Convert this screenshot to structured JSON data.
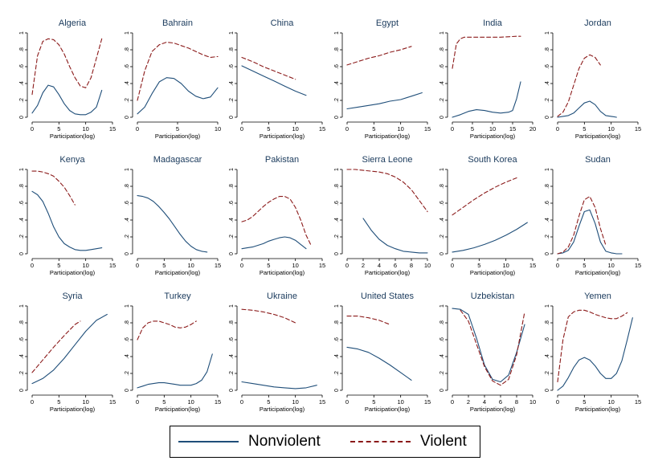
{
  "chart_data": {
    "type": "line",
    "legend": {
      "position": "bottom-center",
      "series": [
        {
          "name": "Nonviolent",
          "color": "#1f4e79",
          "style": "solid"
        },
        {
          "name": "Violent",
          "color": "#8b1a1a",
          "style": "dashed"
        }
      ]
    },
    "ylim": [
      0,
      1
    ],
    "yticks": [
      "0",
      ".2",
      ".4",
      ".6",
      ".8",
      "1"
    ],
    "panels": [
      {
        "title": "Algeria",
        "xlabel": "Participation(log)",
        "xlim": [
          0,
          15
        ],
        "xticks": [
          "0",
          "5",
          "10",
          "15"
        ],
        "nonviolent": {
          "x": [
            0,
            1,
            2,
            3,
            4,
            5,
            6,
            7,
            8,
            9,
            10,
            11,
            12,
            13
          ],
          "y": [
            0.05,
            0.14,
            0.29,
            0.38,
            0.36,
            0.27,
            0.16,
            0.08,
            0.04,
            0.03,
            0.03,
            0.06,
            0.12,
            0.32
          ]
        },
        "violent": {
          "x": [
            0,
            1,
            2,
            3,
            4,
            5,
            6,
            7,
            8,
            9,
            10,
            11,
            12,
            13
          ],
          "y": [
            0.27,
            0.73,
            0.9,
            0.93,
            0.92,
            0.86,
            0.75,
            0.6,
            0.47,
            0.37,
            0.35,
            0.47,
            0.7,
            0.93
          ]
        }
      },
      {
        "title": "Bahrain",
        "xlabel": "Participation(log)",
        "xlim": [
          0,
          11
        ],
        "xticks": [
          "0",
          "5",
          "10"
        ],
        "nonviolent": {
          "x": [
            0,
            1,
            2,
            3,
            4,
            5,
            6,
            7,
            8,
            9,
            10,
            11
          ],
          "y": [
            0.04,
            0.12,
            0.28,
            0.42,
            0.47,
            0.46,
            0.4,
            0.31,
            0.25,
            0.22,
            0.24,
            0.35
          ]
        },
        "violent": {
          "x": [
            0,
            1,
            2,
            3,
            4,
            5,
            6,
            7,
            8,
            9,
            10,
            11
          ],
          "y": [
            0.2,
            0.55,
            0.78,
            0.86,
            0.89,
            0.88,
            0.85,
            0.82,
            0.78,
            0.74,
            0.71,
            0.72
          ]
        }
      },
      {
        "title": "China",
        "xlabel": "Participation(log)",
        "xlim": [
          0,
          15
        ],
        "xticks": [
          "0",
          "5",
          "10",
          "15"
        ],
        "nonviolent": {
          "x": [
            0,
            2,
            4,
            6,
            8,
            10,
            12
          ],
          "y": [
            0.61,
            0.55,
            0.49,
            0.43,
            0.37,
            0.31,
            0.26
          ]
        },
        "violent": {
          "x": [
            0,
            2,
            4,
            6,
            8,
            10
          ],
          "y": [
            0.71,
            0.66,
            0.6,
            0.55,
            0.5,
            0.45
          ]
        }
      },
      {
        "title": "Egypt",
        "xlabel": "Participation(log)",
        "xlim": [
          0,
          15
        ],
        "xticks": [
          "0",
          "5",
          "10",
          "15"
        ],
        "nonviolent": {
          "x": [
            0,
            2,
            4,
            6,
            8,
            10,
            12,
            14
          ],
          "y": [
            0.1,
            0.12,
            0.14,
            0.16,
            0.19,
            0.21,
            0.25,
            0.29
          ]
        },
        "violent": {
          "x": [
            0,
            2,
            4,
            6,
            8,
            10,
            12
          ],
          "y": [
            0.62,
            0.66,
            0.7,
            0.73,
            0.77,
            0.8,
            0.84
          ]
        }
      },
      {
        "title": "India",
        "xlabel": "Participation(log)",
        "xlim": [
          0,
          20
        ],
        "xticks": [
          "0",
          "5",
          "10",
          "15",
          "20"
        ],
        "nonviolent": {
          "x": [
            0,
            2,
            4,
            6,
            8,
            10,
            12,
            14,
            15,
            16,
            17
          ],
          "y": [
            0.0,
            0.03,
            0.07,
            0.09,
            0.08,
            0.06,
            0.05,
            0.06,
            0.08,
            0.22,
            0.42
          ]
        },
        "violent": {
          "x": [
            0,
            1,
            2,
            3,
            5,
            8,
            12,
            16,
            17
          ],
          "y": [
            0.58,
            0.87,
            0.93,
            0.95,
            0.95,
            0.95,
            0.95,
            0.96,
            0.96
          ]
        }
      },
      {
        "title": "Jordan",
        "xlabel": "Participation(log)",
        "xlim": [
          0,
          15
        ],
        "xticks": [
          "0",
          "5",
          "10",
          "15"
        ],
        "nonviolent": {
          "x": [
            0,
            1,
            2,
            3,
            4,
            5,
            6,
            7,
            8,
            9,
            10,
            11
          ],
          "y": [
            0.0,
            0.01,
            0.02,
            0.05,
            0.11,
            0.17,
            0.19,
            0.15,
            0.07,
            0.02,
            0.01,
            0.0
          ]
        },
        "violent": {
          "x": [
            0,
            1,
            2,
            3,
            4,
            5,
            6,
            7,
            8
          ],
          "y": [
            0.01,
            0.06,
            0.18,
            0.38,
            0.58,
            0.7,
            0.74,
            0.71,
            0.62
          ]
        }
      },
      {
        "title": "Kenya",
        "xlabel": "Participation(log)",
        "xlim": [
          0,
          15
        ],
        "xticks": [
          "0",
          "5",
          "10",
          "15"
        ],
        "nonviolent": {
          "x": [
            0,
            1,
            2,
            3,
            4,
            5,
            6,
            7,
            8,
            9,
            10,
            11,
            12,
            13
          ],
          "y": [
            0.74,
            0.7,
            0.62,
            0.48,
            0.32,
            0.2,
            0.12,
            0.08,
            0.05,
            0.04,
            0.04,
            0.05,
            0.06,
            0.07
          ]
        },
        "violent": {
          "x": [
            0,
            1,
            2,
            3,
            4,
            5,
            6,
            7,
            8
          ],
          "y": [
            0.98,
            0.98,
            0.97,
            0.95,
            0.92,
            0.86,
            0.79,
            0.69,
            0.58
          ]
        }
      },
      {
        "title": "Madagascar",
        "xlabel": "Participation(log)",
        "xlim": [
          0,
          15
        ],
        "xticks": [
          "0",
          "5",
          "10",
          "15"
        ],
        "nonviolent": {
          "x": [
            0,
            1,
            2,
            3,
            4,
            5,
            6,
            7,
            8,
            9,
            10,
            11,
            12,
            13
          ],
          "y": [
            0.69,
            0.68,
            0.66,
            0.62,
            0.56,
            0.49,
            0.41,
            0.32,
            0.23,
            0.15,
            0.09,
            0.05,
            0.03,
            0.02
          ]
        }
      },
      {
        "title": "Pakistan",
        "xlabel": "Participation(log)",
        "xlim": [
          0,
          15
        ],
        "xticks": [
          "0",
          "5",
          "10",
          "15"
        ],
        "nonviolent": {
          "x": [
            0,
            1,
            2,
            3,
            4,
            5,
            6,
            7,
            8,
            9,
            10,
            11,
            12
          ],
          "y": [
            0.06,
            0.07,
            0.08,
            0.1,
            0.12,
            0.15,
            0.17,
            0.19,
            0.2,
            0.19,
            0.16,
            0.11,
            0.06
          ]
        },
        "violent": {
          "x": [
            0,
            1,
            2,
            3,
            4,
            5,
            6,
            7,
            8,
            9,
            10,
            11,
            12,
            13
          ],
          "y": [
            0.38,
            0.4,
            0.44,
            0.5,
            0.56,
            0.61,
            0.65,
            0.68,
            0.68,
            0.65,
            0.55,
            0.4,
            0.22,
            0.09
          ]
        }
      },
      {
        "title": "Sierra Leone",
        "xlabel": "Participation(log)",
        "xlim": [
          0,
          10
        ],
        "xticks": [
          "0",
          "2",
          "4",
          "6",
          "8",
          "10"
        ],
        "nonviolent": {
          "x": [
            2,
            3,
            4,
            5,
            6,
            7,
            8,
            9,
            10
          ],
          "y": [
            0.42,
            0.28,
            0.17,
            0.1,
            0.06,
            0.03,
            0.02,
            0.01,
            0.01
          ]
        },
        "violent": {
          "x": [
            0,
            1,
            2,
            3,
            4,
            5,
            6,
            7,
            8,
            9,
            10
          ],
          "y": [
            1.0,
            1.0,
            0.99,
            0.98,
            0.97,
            0.95,
            0.91,
            0.85,
            0.76,
            0.63,
            0.5
          ]
        }
      },
      {
        "title": "South Korea",
        "xlabel": "Participation(log)",
        "xlim": [
          0,
          15
        ],
        "xticks": [
          "0",
          "5",
          "10",
          "15"
        ],
        "nonviolent": {
          "x": [
            0,
            2,
            4,
            6,
            8,
            10,
            12,
            14
          ],
          "y": [
            0.02,
            0.04,
            0.07,
            0.11,
            0.16,
            0.22,
            0.29,
            0.37
          ]
        },
        "violent": {
          "x": [
            0,
            2,
            4,
            6,
            8,
            10,
            12
          ],
          "y": [
            0.46,
            0.55,
            0.64,
            0.72,
            0.79,
            0.85,
            0.9
          ]
        }
      },
      {
        "title": "Sudan",
        "xlabel": "Participation(log)",
        "xlim": [
          0,
          15
        ],
        "xticks": [
          "0",
          "5",
          "10",
          "15"
        ],
        "nonviolent": {
          "x": [
            0,
            1,
            2,
            3,
            4,
            5,
            6,
            7,
            8,
            9,
            10,
            11,
            12
          ],
          "y": [
            0.0,
            0.01,
            0.04,
            0.14,
            0.33,
            0.5,
            0.52,
            0.36,
            0.14,
            0.03,
            0.01,
            0.0,
            0.0
          ]
        },
        "violent": {
          "x": [
            0,
            1,
            2,
            3,
            4,
            5,
            6,
            7,
            8,
            9
          ],
          "y": [
            0.0,
            0.02,
            0.08,
            0.22,
            0.45,
            0.64,
            0.68,
            0.55,
            0.3,
            0.1
          ]
        }
      },
      {
        "title": "Syria",
        "xlabel": "Participation(log)",
        "xlim": [
          0,
          15
        ],
        "xticks": [
          "0",
          "5",
          "10",
          "15"
        ],
        "nonviolent": {
          "x": [
            0,
            2,
            4,
            6,
            8,
            10,
            12,
            14
          ],
          "y": [
            0.08,
            0.14,
            0.24,
            0.38,
            0.54,
            0.7,
            0.83,
            0.9
          ]
        },
        "violent": {
          "x": [
            0,
            2,
            4,
            6,
            8,
            9
          ],
          "y": [
            0.21,
            0.36,
            0.51,
            0.65,
            0.78,
            0.82
          ]
        }
      },
      {
        "title": "Turkey",
        "xlabel": "Participation(log)",
        "xlim": [
          0,
          15
        ],
        "xticks": [
          "0",
          "5",
          "10",
          "15"
        ],
        "nonviolent": {
          "x": [
            0,
            1,
            2,
            3,
            4,
            5,
            6,
            7,
            8,
            9,
            10,
            11,
            12,
            13,
            14
          ],
          "y": [
            0.03,
            0.05,
            0.07,
            0.08,
            0.09,
            0.09,
            0.08,
            0.07,
            0.06,
            0.06,
            0.06,
            0.08,
            0.12,
            0.22,
            0.43
          ]
        },
        "violent": {
          "x": [
            0,
            1,
            2,
            3,
            4,
            5,
            6,
            7,
            8,
            9,
            10,
            11
          ],
          "y": [
            0.6,
            0.74,
            0.8,
            0.82,
            0.82,
            0.8,
            0.78,
            0.75,
            0.74,
            0.75,
            0.78,
            0.82
          ]
        }
      },
      {
        "title": "Ukraine",
        "xlabel": "Participation(log)",
        "xlim": [
          0,
          15
        ],
        "xticks": [
          "0",
          "5",
          "10",
          "15"
        ],
        "nonviolent": {
          "x": [
            0,
            2,
            4,
            6,
            8,
            10,
            12,
            14
          ],
          "y": [
            0.1,
            0.08,
            0.06,
            0.04,
            0.03,
            0.02,
            0.03,
            0.06
          ]
        },
        "violent": {
          "x": [
            0,
            2,
            4,
            6,
            8,
            10
          ],
          "y": [
            0.96,
            0.95,
            0.93,
            0.9,
            0.86,
            0.8
          ]
        }
      },
      {
        "title": "United States",
        "xlabel": "Participation(log)",
        "xlim": [
          0,
          15
        ],
        "xticks": [
          "0",
          "5",
          "10",
          "15"
        ],
        "nonviolent": {
          "x": [
            0,
            2,
            4,
            6,
            8,
            10,
            12
          ],
          "y": [
            0.51,
            0.49,
            0.45,
            0.38,
            0.3,
            0.21,
            0.12
          ]
        },
        "violent": {
          "x": [
            0,
            2,
            4,
            6,
            8
          ],
          "y": [
            0.88,
            0.88,
            0.86,
            0.83,
            0.78
          ]
        }
      },
      {
        "title": "Uzbekistan",
        "xlabel": "Participation(log)",
        "xlim": [
          0,
          10
        ],
        "xticks": [
          "0",
          "2",
          "4",
          "6",
          "8",
          "10"
        ],
        "nonviolent": {
          "x": [
            0,
            1,
            2,
            3,
            4,
            5,
            6,
            7,
            8,
            9
          ],
          "y": [
            0.97,
            0.96,
            0.9,
            0.62,
            0.3,
            0.13,
            0.1,
            0.18,
            0.45,
            0.78
          ]
        },
        "violent": {
          "x": [
            1,
            2,
            3,
            4,
            5,
            6,
            7,
            8,
            9
          ],
          "y": [
            0.95,
            0.82,
            0.55,
            0.28,
            0.11,
            0.06,
            0.13,
            0.42,
            0.93
          ]
        }
      },
      {
        "title": "Yemen",
        "xlabel": "Participation(log)",
        "xlim": [
          0,
          15
        ],
        "xticks": [
          "0",
          "5",
          "10",
          "15"
        ],
        "nonviolent": {
          "x": [
            0,
            1,
            2,
            3,
            4,
            5,
            6,
            7,
            8,
            9,
            10,
            11,
            12,
            13,
            14
          ],
          "y": [
            0.0,
            0.05,
            0.15,
            0.27,
            0.36,
            0.39,
            0.36,
            0.29,
            0.2,
            0.14,
            0.14,
            0.2,
            0.35,
            0.6,
            0.86
          ]
        },
        "violent": {
          "x": [
            0,
            1,
            2,
            3,
            4,
            5,
            6,
            7,
            8,
            9,
            10,
            11,
            12,
            13
          ],
          "y": [
            0.1,
            0.6,
            0.87,
            0.93,
            0.95,
            0.95,
            0.93,
            0.9,
            0.88,
            0.86,
            0.85,
            0.85,
            0.88,
            0.92
          ]
        }
      }
    ]
  }
}
